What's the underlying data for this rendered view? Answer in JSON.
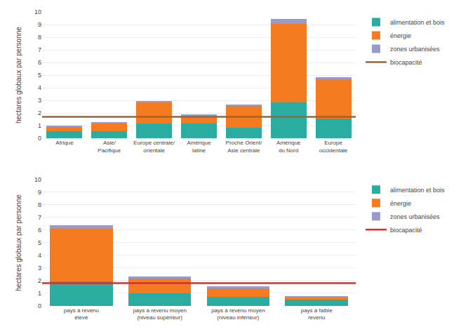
{
  "chart_data": [
    {
      "type": "bar",
      "stacked": true,
      "grid": true,
      "legend": "right",
      "ylabel": "hectares globaux par personne",
      "categories": [
        "Afrique",
        "Asie/\nPacifique",
        "Europe centrale/\norientale",
        "Amérique\nlatine",
        "Proche Orient/\nAsie centrale",
        "Amérique\ndu Nord",
        "Europe\noccidentale"
      ],
      "series": [
        {
          "name": "alimentation et bois",
          "color": "#2aada0",
          "values": [
            0.55,
            0.55,
            1.2,
            1.2,
            0.85,
            2.85,
            1.55
          ]
        },
        {
          "name": "énergie",
          "color": "#f47b20",
          "values": [
            0.35,
            0.6,
            1.65,
            0.6,
            1.75,
            6.2,
            3.1
          ]
        },
        {
          "name": "zones urbanisées",
          "color": "#9999cc",
          "values": [
            0.1,
            0.15,
            0.1,
            0.1,
            0.1,
            0.4,
            0.2
          ]
        }
      ],
      "reference_line": {
        "name": "biocapacité",
        "color": "#996633",
        "value": 1.7
      },
      "ylim": [
        0,
        10
      ],
      "yticks": [
        0,
        1,
        2,
        3,
        4,
        5,
        6,
        7,
        8,
        9,
        10
      ]
    },
    {
      "type": "bar",
      "stacked": true,
      "grid": true,
      "legend": "right",
      "ylabel": "hectares globaux par personne",
      "categories": [
        "pays à revenu\nélevé",
        "pays à revenu moyen\n(niveau supérieur)",
        "pays à revenu moyen\n(niveau inférieur)",
        "pays à faible\nrevenu"
      ],
      "series": [
        {
          "name": "alimentation et bois",
          "color": "#2aada0",
          "values": [
            1.95,
            1.0,
            0.7,
            0.5
          ]
        },
        {
          "name": "énergie",
          "color": "#f47b20",
          "values": [
            4.15,
            1.15,
            0.75,
            0.2
          ]
        },
        {
          "name": "zones urbanisées",
          "color": "#9999cc",
          "values": [
            0.3,
            0.2,
            0.1,
            0.05
          ]
        }
      ],
      "reference_line": {
        "name": "biocapacité",
        "color": "#cc3333",
        "value": 1.8
      },
      "ylim": [
        0,
        10
      ],
      "yticks": [
        0,
        1,
        2,
        3,
        4,
        5,
        6,
        7,
        8,
        9,
        10
      ]
    }
  ]
}
